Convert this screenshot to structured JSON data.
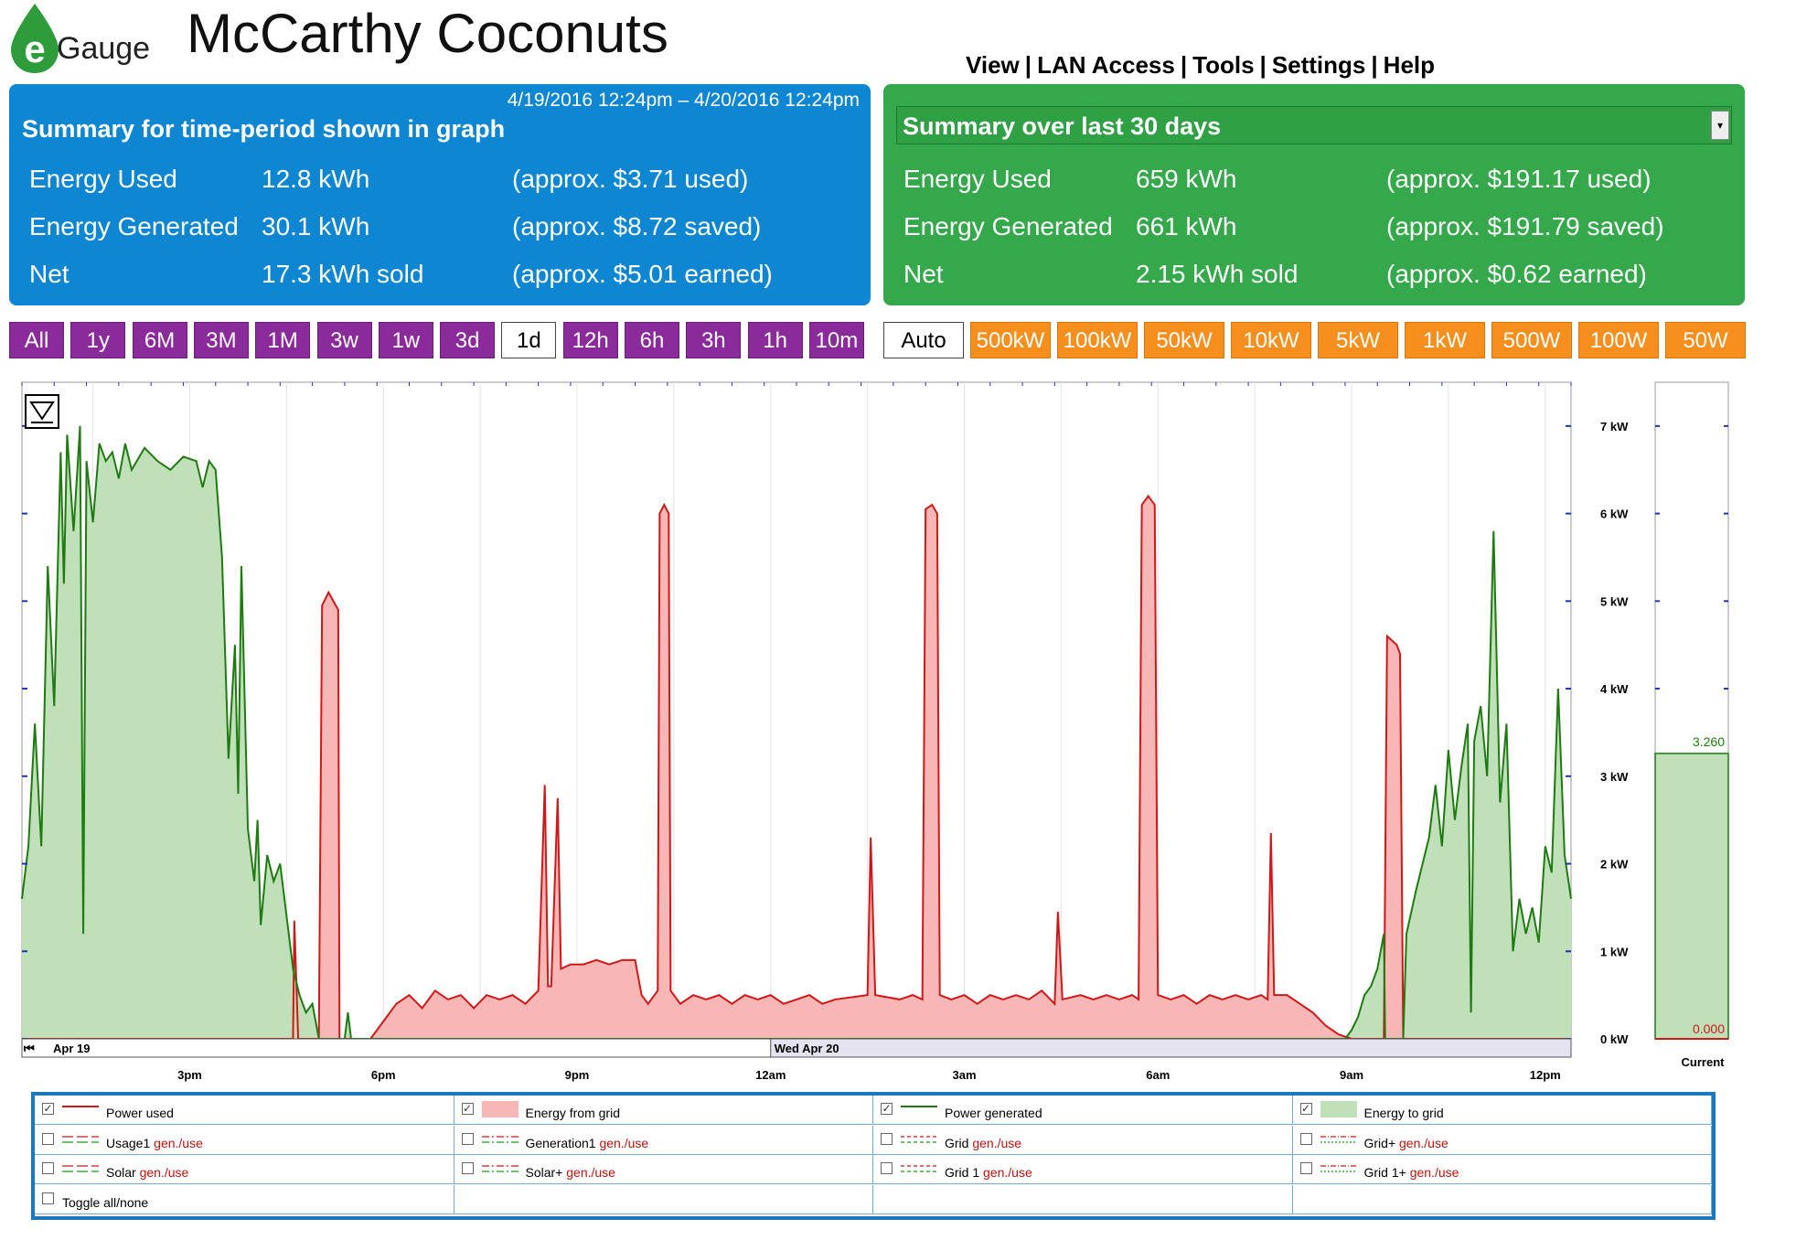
{
  "header": {
    "logo_text": "Gauge",
    "app_title": "McCarthy Coconuts",
    "nav": [
      "View",
      "LAN Access",
      "Tools",
      "Settings",
      "Help"
    ],
    "nav_sep": "|"
  },
  "summary_left": {
    "range": "4/19/2016 12:24pm – 4/20/2016 12:24pm",
    "title": "Summary for time-period shown in graph",
    "rows": [
      {
        "label": "Energy Used",
        "value": "12.8 kWh",
        "note": "(approx. $3.71 used)"
      },
      {
        "label": "Energy Generated",
        "value": "30.1 kWh",
        "note": "(approx. $8.72 saved)"
      },
      {
        "label": "Net",
        "value": "17.3 kWh sold",
        "note": "(approx. $5.01 earned)"
      }
    ]
  },
  "summary_right": {
    "title": "Summary over last 30 days",
    "rows": [
      {
        "label": "Energy Used",
        "value": "659 kWh",
        "note": "(approx. $191.17 used)"
      },
      {
        "label": "Energy Generated",
        "value": "661 kWh",
        "note": "(approx. $191.79 saved)"
      },
      {
        "label": "Net",
        "value": "2.15 kWh sold",
        "note": "(approx. $0.62 earned)"
      }
    ]
  },
  "time_buttons": [
    "All",
    "1y",
    "6M",
    "3M",
    "1M",
    "3w",
    "1w",
    "3d",
    "1d",
    "12h",
    "6h",
    "3h",
    "1h",
    "10m"
  ],
  "time_selected": "1d",
  "scale_buttons": [
    "Auto",
    "500kW",
    "100kW",
    "50kW",
    "10kW",
    "5kW",
    "1kW",
    "500W",
    "100W",
    "50W"
  ],
  "scale_selected": "Auto",
  "colors": {
    "used_line": "#d01818",
    "used_fill": "#f7b7b7",
    "gen_line": "#1f7a12",
    "gen_fill": "#bfe0b8",
    "nav_purple": "#8b2b9b",
    "scale_orange": "#f78f1e",
    "left_panel": "#0f86d2",
    "right_panel": "#34a84a"
  },
  "chart_data": {
    "type": "area",
    "y_unit": "kW",
    "ylim": [
      0,
      7.5
    ],
    "y_ticks": [
      "0 kW",
      "1 kW",
      "2 kW",
      "3 kW",
      "4 kW",
      "5 kW",
      "6 kW",
      "7 kW"
    ],
    "x_ticks": [
      "3pm",
      "6pm",
      "9pm",
      "12am",
      "3am",
      "6am",
      "9am",
      "12pm"
    ],
    "x_hours_range": [
      12.4,
      36.4
    ],
    "date_markers": [
      {
        "label": "Apr 19",
        "hour": 12.4
      },
      {
        "label": "Wed Apr 20",
        "hour": 24
      }
    ],
    "series": [
      {
        "name": "Power used",
        "points": [
          [
            12.4,
            0
          ],
          [
            16.6,
            0
          ],
          [
            16.62,
            1.35
          ],
          [
            16.68,
            0
          ],
          [
            17.0,
            0
          ],
          [
            17.05,
            4.95
          ],
          [
            17.15,
            5.1
          ],
          [
            17.3,
            4.9
          ],
          [
            17.32,
            0
          ],
          [
            17.8,
            0
          ],
          [
            18.0,
            0.2
          ],
          [
            18.2,
            0.4
          ],
          [
            18.4,
            0.5
          ],
          [
            18.6,
            0.35
          ],
          [
            18.8,
            0.55
          ],
          [
            19.0,
            0.45
          ],
          [
            19.2,
            0.5
          ],
          [
            19.4,
            0.35
          ],
          [
            19.6,
            0.5
          ],
          [
            19.8,
            0.45
          ],
          [
            20.0,
            0.5
          ],
          [
            20.2,
            0.4
          ],
          [
            20.4,
            0.55
          ],
          [
            20.5,
            2.9
          ],
          [
            20.55,
            0.6
          ],
          [
            20.6,
            0.6
          ],
          [
            20.7,
            2.75
          ],
          [
            20.75,
            0.8
          ],
          [
            20.9,
            0.85
          ],
          [
            21.1,
            0.85
          ],
          [
            21.3,
            0.9
          ],
          [
            21.5,
            0.85
          ],
          [
            21.7,
            0.9
          ],
          [
            21.9,
            0.9
          ],
          [
            22.0,
            0.5
          ],
          [
            22.1,
            0.4
          ],
          [
            22.25,
            0.55
          ],
          [
            22.28,
            6.0
          ],
          [
            22.35,
            6.1
          ],
          [
            22.42,
            6.0
          ],
          [
            22.45,
            0.55
          ],
          [
            22.6,
            0.4
          ],
          [
            22.8,
            0.5
          ],
          [
            23.0,
            0.45
          ],
          [
            23.2,
            0.5
          ],
          [
            23.4,
            0.4
          ],
          [
            23.6,
            0.5
          ],
          [
            23.8,
            0.45
          ],
          [
            24.0,
            0.5
          ],
          [
            24.2,
            0.4
          ],
          [
            24.4,
            0.45
          ],
          [
            24.6,
            0.5
          ],
          [
            24.8,
            0.4
          ],
          [
            25.0,
            0.45
          ],
          [
            25.5,
            0.5
          ],
          [
            25.55,
            2.3
          ],
          [
            25.62,
            0.5
          ],
          [
            26.0,
            0.45
          ],
          [
            26.2,
            0.5
          ],
          [
            26.35,
            0.45
          ],
          [
            26.4,
            6.05
          ],
          [
            26.5,
            6.1
          ],
          [
            26.58,
            6.0
          ],
          [
            26.62,
            0.5
          ],
          [
            26.8,
            0.45
          ],
          [
            27.0,
            0.5
          ],
          [
            27.2,
            0.4
          ],
          [
            27.4,
            0.5
          ],
          [
            27.6,
            0.45
          ],
          [
            27.8,
            0.5
          ],
          [
            28.0,
            0.45
          ],
          [
            28.2,
            0.55
          ],
          [
            28.4,
            0.4
          ],
          [
            28.45,
            1.45
          ],
          [
            28.52,
            0.45
          ],
          [
            28.8,
            0.5
          ],
          [
            29.0,
            0.45
          ],
          [
            29.2,
            0.5
          ],
          [
            29.4,
            0.45
          ],
          [
            29.6,
            0.5
          ],
          [
            29.7,
            0.45
          ],
          [
            29.75,
            6.1
          ],
          [
            29.85,
            6.2
          ],
          [
            29.95,
            6.1
          ],
          [
            30.0,
            0.5
          ],
          [
            30.2,
            0.45
          ],
          [
            30.4,
            0.5
          ],
          [
            30.6,
            0.4
          ],
          [
            30.8,
            0.5
          ],
          [
            31.0,
            0.45
          ],
          [
            31.2,
            0.5
          ],
          [
            31.4,
            0.45
          ],
          [
            31.6,
            0.5
          ],
          [
            31.7,
            0.45
          ],
          [
            31.75,
            2.35
          ],
          [
            31.8,
            0.5
          ],
          [
            32.0,
            0.5
          ],
          [
            32.2,
            0.4
          ],
          [
            32.4,
            0.3
          ],
          [
            32.6,
            0.15
          ],
          [
            32.8,
            0.05
          ],
          [
            33.0,
            0
          ],
          [
            33.5,
            0
          ],
          [
            33.55,
            4.6
          ],
          [
            33.7,
            4.5
          ],
          [
            33.75,
            4.4
          ],
          [
            33.8,
            0
          ],
          [
            36.4,
            0
          ]
        ]
      },
      {
        "name": "Power generated",
        "points": [
          [
            12.4,
            1.6
          ],
          [
            12.5,
            2.2
          ],
          [
            12.6,
            3.6
          ],
          [
            12.7,
            2.2
          ],
          [
            12.8,
            5.4
          ],
          [
            12.9,
            3.8
          ],
          [
            13.0,
            6.7
          ],
          [
            13.05,
            5.2
          ],
          [
            13.1,
            6.9
          ],
          [
            13.2,
            5.8
          ],
          [
            13.3,
            7.0
          ],
          [
            13.35,
            1.2
          ],
          [
            13.4,
            6.6
          ],
          [
            13.5,
            5.9
          ],
          [
            13.6,
            6.8
          ],
          [
            13.7,
            6.6
          ],
          [
            13.8,
            6.7
          ],
          [
            13.9,
            6.4
          ],
          [
            14.0,
            6.8
          ],
          [
            14.1,
            6.5
          ],
          [
            14.3,
            6.75
          ],
          [
            14.5,
            6.6
          ],
          [
            14.7,
            6.5
          ],
          [
            14.9,
            6.65
          ],
          [
            15.1,
            6.6
          ],
          [
            15.2,
            6.3
          ],
          [
            15.3,
            6.6
          ],
          [
            15.4,
            6.5
          ],
          [
            15.5,
            5.5
          ],
          [
            15.6,
            3.2
          ],
          [
            15.7,
            4.5
          ],
          [
            15.75,
            2.8
          ],
          [
            15.8,
            5.4
          ],
          [
            15.9,
            2.4
          ],
          [
            16.0,
            1.8
          ],
          [
            16.05,
            2.5
          ],
          [
            16.1,
            1.3
          ],
          [
            16.2,
            2.1
          ],
          [
            16.3,
            1.8
          ],
          [
            16.4,
            2.0
          ],
          [
            16.5,
            1.4
          ],
          [
            16.6,
            0.8
          ],
          [
            16.7,
            0.5
          ],
          [
            16.8,
            0.3
          ],
          [
            16.9,
            0.4
          ],
          [
            17.0,
            0
          ],
          [
            17.4,
            0
          ],
          [
            17.45,
            0.3
          ],
          [
            17.5,
            0
          ],
          [
            32.9,
            0
          ],
          [
            33.0,
            0.1
          ],
          [
            33.1,
            0.25
          ],
          [
            33.2,
            0.5
          ],
          [
            33.3,
            0.6
          ],
          [
            33.4,
            0.8
          ],
          [
            33.5,
            1.2
          ],
          [
            33.52,
            0
          ],
          [
            33.8,
            0
          ],
          [
            33.85,
            1.2
          ],
          [
            34.0,
            1.7
          ],
          [
            34.1,
            2.0
          ],
          [
            34.2,
            2.3
          ],
          [
            34.3,
            2.9
          ],
          [
            34.4,
            2.2
          ],
          [
            34.5,
            3.3
          ],
          [
            34.6,
            2.5
          ],
          [
            34.7,
            3.1
          ],
          [
            34.8,
            3.6
          ],
          [
            34.85,
            0.3
          ],
          [
            34.9,
            3.4
          ],
          [
            35.0,
            3.8
          ],
          [
            35.1,
            3.0
          ],
          [
            35.2,
            5.8
          ],
          [
            35.3,
            2.7
          ],
          [
            35.4,
            3.6
          ],
          [
            35.5,
            1.0
          ],
          [
            35.6,
            1.6
          ],
          [
            35.7,
            1.2
          ],
          [
            35.8,
            1.5
          ],
          [
            35.9,
            1.1
          ],
          [
            36.0,
            2.2
          ],
          [
            36.1,
            1.9
          ],
          [
            36.2,
            4.0
          ],
          [
            36.3,
            2.1
          ],
          [
            36.4,
            1.6
          ]
        ]
      }
    ],
    "current": {
      "label": "Current",
      "gen_value": "3.260",
      "used_value": "0.000",
      "gen_kw": 3.26
    }
  },
  "legend": {
    "rows": [
      [
        {
          "checked": true,
          "label": "Power used",
          "suffix": "",
          "swatch": "line-red"
        },
        {
          "checked": true,
          "label": "Energy from grid",
          "suffix": "",
          "swatch": "fill-red"
        },
        {
          "checked": true,
          "label": "Power generated",
          "suffix": "",
          "swatch": "line-green"
        },
        {
          "checked": true,
          "label": "Energy to grid",
          "suffix": "",
          "swatch": "fill-green"
        }
      ],
      [
        {
          "checked": false,
          "label": "Usage1",
          "suffix": "gen./use",
          "swatch": "dash-a"
        },
        {
          "checked": false,
          "label": "Generation1",
          "suffix": "gen./use",
          "swatch": "dash-b"
        },
        {
          "checked": false,
          "label": "Grid",
          "suffix": "gen./use",
          "swatch": "dash-c"
        },
        {
          "checked": false,
          "label": "Grid+",
          "suffix": "gen./use",
          "swatch": "dash-d"
        }
      ],
      [
        {
          "checked": false,
          "label": "Solar",
          "suffix": "gen./use",
          "swatch": "dash-a"
        },
        {
          "checked": false,
          "label": "Solar+",
          "suffix": "gen./use",
          "swatch": "dash-b"
        },
        {
          "checked": false,
          "label": "Grid 1",
          "suffix": "gen./use",
          "swatch": "dash-c"
        },
        {
          "checked": false,
          "label": "Grid 1+",
          "suffix": "gen./use",
          "swatch": "dash-d"
        }
      ]
    ],
    "toggle": "Toggle all/none"
  }
}
